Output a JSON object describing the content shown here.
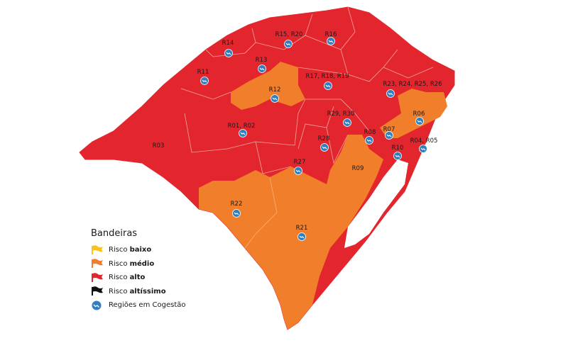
{
  "colors": {
    "alto": "#e3262e",
    "medio": "#f07e2b",
    "baixo": "#fbc21b",
    "altissimo": "#111111",
    "cogestao": "#2f7fc1",
    "border": "#f3a6a0"
  },
  "regions": [
    {
      "label": "R14",
      "risk": "alto",
      "cogestao": true
    },
    {
      "label": "R15, R20",
      "risk": "alto",
      "cogestao": true
    },
    {
      "label": "R16",
      "risk": "alto",
      "cogestao": true
    },
    {
      "label": "R13",
      "risk": "alto",
      "cogestao": true
    },
    {
      "label": "R11",
      "risk": "alto",
      "cogestao": true
    },
    {
      "label": "R12",
      "risk": "medio",
      "cogestao": true
    },
    {
      "label": "R17, R18, R19",
      "risk": "alto",
      "cogestao": true
    },
    {
      "label": "R23, R24, R25, R26",
      "risk": "alto",
      "cogestao": true
    },
    {
      "label": "R06",
      "risk": "medio",
      "cogestao": true
    },
    {
      "label": "R29, R30",
      "risk": "alto",
      "cogestao": true
    },
    {
      "label": "R01, R02",
      "risk": "alto",
      "cogestao": true
    },
    {
      "label": "R07",
      "risk": "medio",
      "cogestao": true
    },
    {
      "label": "R08",
      "risk": "alto",
      "cogestao": true
    },
    {
      "label": "R04, R05",
      "risk": "alto",
      "cogestao": true
    },
    {
      "label": "R10",
      "risk": "alto",
      "cogestao": true
    },
    {
      "label": "R28",
      "risk": "alto",
      "cogestao": true
    },
    {
      "label": "R03",
      "risk": "alto",
      "cogestao": false
    },
    {
      "label": "R27",
      "risk": "alto",
      "cogestao": true
    },
    {
      "label": "R09",
      "risk": "medio",
      "cogestao": false
    },
    {
      "label": "R22",
      "risk": "medio",
      "cogestao": true
    },
    {
      "label": "R21",
      "risk": "medio",
      "cogestao": true
    }
  ],
  "legend": {
    "title": "Bandeiras",
    "items": [
      {
        "prefix": "Risco",
        "bold": "baixo",
        "icon": "flag-icon",
        "color": "#fbc21b"
      },
      {
        "prefix": "Risco",
        "bold": "médio",
        "icon": "flag-icon",
        "color": "#f07e2b"
      },
      {
        "prefix": "Risco",
        "bold": "alto",
        "icon": "flag-icon",
        "color": "#e3262e"
      },
      {
        "prefix": "Risco",
        "bold": "altíssimo",
        "icon": "flag-icon",
        "color": "#111111"
      },
      {
        "prefix": "Regiões em Cogestão",
        "bold": "",
        "icon": "cogestao-icon",
        "color": "#2f7fc1"
      }
    ]
  }
}
